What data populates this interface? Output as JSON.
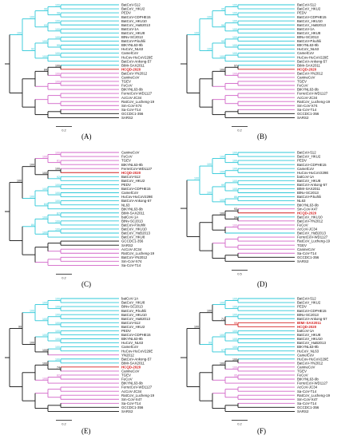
{
  "colors": {
    "cyan": "#2ec8d8",
    "magenta": "#d265c8",
    "red": "#d42020",
    "black": "#111111",
    "highlight_label": "#d42020"
  },
  "panels": [
    {
      "label": "(A)",
      "scale_value": "0.2",
      "taxa": [
        {
          "name": "BatCoV-512",
          "clade": "cyan"
        },
        {
          "name": "BatCoV_HKU2",
          "clade": "cyan"
        },
        {
          "name": "PEDV",
          "clade": "cyan"
        },
        {
          "name": "BatCoV-CDPHE15",
          "clade": "cyan"
        },
        {
          "name": "BatCoV_HKU10",
          "clade": "cyan"
        },
        {
          "name": "BatCoV_HuB2013",
          "clade": "cyan"
        },
        {
          "name": "BatCoV-1A",
          "clade": "cyan"
        },
        {
          "name": "BatCoV_HKU8",
          "clade": "cyan"
        },
        {
          "name": "BtNv-SC2013",
          "clade": "cyan"
        },
        {
          "name": "BatCoV-P.kuhlii",
          "clade": "cyan"
        },
        {
          "name": "BtKYNL63-9b",
          "clade": "cyan"
        },
        {
          "name": "HuCoV_NL63",
          "clade": "cyan"
        },
        {
          "name": "CamelCoV",
          "clade": "cyan"
        },
        {
          "name": "HuCov-HuCoV229E",
          "clade": "cyan"
        },
        {
          "name": "BatCoV-Ankong-57",
          "clade": "cyan"
        },
        {
          "name": "BtMr-SAX2011",
          "clade": "cyan"
        },
        {
          "name": "HCQD-2020",
          "clade": "red"
        },
        {
          "name": "BatCoV-YN2012",
          "clade": "magenta"
        },
        {
          "name": "CanineCoV",
          "clade": "magenta"
        },
        {
          "name": "TGEV",
          "clade": "magenta"
        },
        {
          "name": "FeCoV",
          "clade": "magenta"
        },
        {
          "name": "BtKYNL63-9b",
          "clade": "magenta"
        },
        {
          "name": "FerretCoV-WD1127",
          "clade": "magenta"
        },
        {
          "name": "AcCoV-JC34",
          "clade": "magenta"
        },
        {
          "name": "RatCoV_Lucheng-19",
          "clade": "magenta"
        },
        {
          "name": "Sm-CoV-X74",
          "clade": "magenta"
        },
        {
          "name": "Sa-CoV-T14",
          "clade": "magenta"
        },
        {
          "name": "GCCDC1-356",
          "clade": "black"
        },
        {
          "name": "SARS2",
          "clade": "black"
        }
      ],
      "bootstrap": [
        "100",
        "98",
        "96",
        "100",
        "100",
        "93",
        "100",
        "100",
        "99",
        "100",
        "100",
        "100",
        "92",
        "100",
        "100",
        "100",
        "84",
        "100"
      ]
    },
    {
      "label": "(B)",
      "scale_value": "0.2",
      "taxa": [
        {
          "name": "BatCoV-512",
          "clade": "cyan"
        },
        {
          "name": "BatCoV_HKU2",
          "clade": "cyan"
        },
        {
          "name": "PEDV",
          "clade": "cyan"
        },
        {
          "name": "BatCoV-CDPHE15",
          "clade": "cyan"
        },
        {
          "name": "BatCoV_HKU10",
          "clade": "cyan"
        },
        {
          "name": "BatCoV_HuB2013",
          "clade": "cyan"
        },
        {
          "name": "BatCoV-1A",
          "clade": "cyan"
        },
        {
          "name": "BatCoV_HKU8",
          "clade": "cyan"
        },
        {
          "name": "BtNv-SC2013",
          "clade": "cyan"
        },
        {
          "name": "BatCoV-P.kuhlii",
          "clade": "cyan"
        },
        {
          "name": "BtKYNL63-9b",
          "clade": "cyan"
        },
        {
          "name": "HuCoV_NL63",
          "clade": "cyan"
        },
        {
          "name": "CamelCoV",
          "clade": "cyan"
        },
        {
          "name": "HuCov-HuCoV229E",
          "clade": "cyan"
        },
        {
          "name": "BatCoV-Ankong-57",
          "clade": "cyan"
        },
        {
          "name": "BtMr-SAX2011",
          "clade": "cyan"
        },
        {
          "name": "HCQD-2020",
          "clade": "red"
        },
        {
          "name": "BatCoV-YN2012",
          "clade": "magenta"
        },
        {
          "name": "CanineCoV",
          "clade": "magenta"
        },
        {
          "name": "TGEV",
          "clade": "magenta"
        },
        {
          "name": "FeCoV",
          "clade": "magenta"
        },
        {
          "name": "BtKYNL63-9b",
          "clade": "magenta"
        },
        {
          "name": "FerretCoV-WD1127",
          "clade": "magenta"
        },
        {
          "name": "AcCoV-JC34",
          "clade": "magenta"
        },
        {
          "name": "RatCoV_Lucheng-19",
          "clade": "magenta"
        },
        {
          "name": "Sm-CoV-X74",
          "clade": "magenta"
        },
        {
          "name": "Sa-CoV-T14",
          "clade": "magenta"
        },
        {
          "name": "GCCDC1-356",
          "clade": "black"
        },
        {
          "name": "SARS2",
          "clade": "black"
        }
      ],
      "bootstrap": [
        "100",
        "100",
        "95",
        "100",
        "100",
        "96",
        "100",
        "100",
        "100",
        "99",
        "100",
        "100",
        "100",
        "100",
        "97",
        "100",
        "100"
      ]
    },
    {
      "label": "(C)",
      "scale_value": "0.2",
      "taxa": [
        {
          "name": "CanineCoV",
          "clade": "magenta"
        },
        {
          "name": "FeCoV",
          "clade": "magenta"
        },
        {
          "name": "TGEV",
          "clade": "magenta"
        },
        {
          "name": "BtKYNL63-9b",
          "clade": "magenta"
        },
        {
          "name": "FerretCoV-WD1127",
          "clade": "magenta"
        },
        {
          "name": "HCQD-2020",
          "clade": "red"
        },
        {
          "name": "BatCoV-512",
          "clade": "cyan"
        },
        {
          "name": "BatCoV_HKU2",
          "clade": "cyan"
        },
        {
          "name": "PEDV",
          "clade": "cyan"
        },
        {
          "name": "BatCoV-CDPHE15",
          "clade": "cyan"
        },
        {
          "name": "CamelCoV",
          "clade": "cyan"
        },
        {
          "name": "HuCov-HuCoV229E",
          "clade": "cyan"
        },
        {
          "name": "BatCoV-Ankong-57",
          "clade": "cyan"
        },
        {
          "name": "NL63",
          "clade": "cyan"
        },
        {
          "name": "BtKYNL63-9b",
          "clade": "cyan"
        },
        {
          "name": "BtMr-SAX2011",
          "clade": "cyan"
        },
        {
          "name": "batCoV-1A",
          "clade": "cyan"
        },
        {
          "name": "BtNv-SC2013",
          "clade": "cyan"
        },
        {
          "name": "BatCoV-P.kuhlii",
          "clade": "cyan"
        },
        {
          "name": "BatCoV_HKU10",
          "clade": "cyan"
        },
        {
          "name": "BatCoV_HuB2013",
          "clade": "cyan"
        },
        {
          "name": "BatCoV_HKU8",
          "clade": "cyan"
        },
        {
          "name": "GCCDC1-356",
          "clade": "black"
        },
        {
          "name": "SARS2",
          "clade": "black"
        },
        {
          "name": "AcCoV-JC34",
          "clade": "magenta"
        },
        {
          "name": "RatCoV_Lucheng-19",
          "clade": "magenta"
        },
        {
          "name": "BatCoV-YN2012",
          "clade": "magenta"
        },
        {
          "name": "Sm-CoV-X74",
          "clade": "magenta"
        },
        {
          "name": "Sa-CoV-T14",
          "clade": "magenta"
        }
      ],
      "bootstrap": [
        "100",
        "81",
        "100",
        "100",
        "92",
        "100",
        "100",
        "100",
        "100",
        "100",
        "100",
        "84",
        "100",
        "100",
        "87",
        "100",
        "100",
        "100",
        "100",
        "84"
      ]
    },
    {
      "label": "(D)",
      "scale_value": "0.5",
      "taxa": [
        {
          "name": "BatCoV-512",
          "clade": "cyan"
        },
        {
          "name": "BatCoV_HKU2",
          "clade": "cyan"
        },
        {
          "name": "PEDV",
          "clade": "cyan"
        },
        {
          "name": "BatCoV-CDPHE15",
          "clade": "cyan"
        },
        {
          "name": "CamelCoV",
          "clade": "cyan"
        },
        {
          "name": "HuCov-HuCoV229E",
          "clade": "cyan"
        },
        {
          "name": "batCoV-1A",
          "clade": "cyan"
        },
        {
          "name": "BatCoV_HKU8",
          "clade": "cyan"
        },
        {
          "name": "BatCoV-Ankong-57",
          "clade": "cyan"
        },
        {
          "name": "BtMr-SAX2011",
          "clade": "cyan"
        },
        {
          "name": "BtNv-SC2013",
          "clade": "cyan"
        },
        {
          "name": "BatCoV-P.kuhlii",
          "clade": "cyan"
        },
        {
          "name": "NL63",
          "clade": "cyan"
        },
        {
          "name": "BtKYNL63-9b",
          "clade": "cyan"
        },
        {
          "name": "Sm-CoV-X47",
          "clade": "magenta"
        },
        {
          "name": "HCQD-2020",
          "clade": "red"
        },
        {
          "name": "BatCoV_HKU10",
          "clade": "cyan"
        },
        {
          "name": "BatCoV-YN2012",
          "clade": "magenta"
        },
        {
          "name": "FeCoV",
          "clade": "magenta"
        },
        {
          "name": "AcCoV-JC34",
          "clade": "magenta"
        },
        {
          "name": "BatCoV_HuB2013",
          "clade": "cyan"
        },
        {
          "name": "FerretCoV-WD1127",
          "clade": "magenta"
        },
        {
          "name": "RatCoV_Lucheng-19",
          "clade": "magenta"
        },
        {
          "name": "TGEV",
          "clade": "magenta"
        },
        {
          "name": "CanineCoV",
          "clade": "magenta"
        },
        {
          "name": "Sa-CoV-T14",
          "clade": "magenta"
        },
        {
          "name": "GCCDC1-356",
          "clade": "black"
        },
        {
          "name": "SARS2",
          "clade": "black"
        }
      ],
      "bootstrap": [
        "100",
        "100",
        "100",
        "100",
        "100",
        "100",
        "100",
        "100",
        "99",
        "86",
        "100",
        "100",
        "100",
        "93",
        "94",
        "100",
        "100"
      ]
    },
    {
      "label": "(E)",
      "scale_value": "0.2",
      "taxa": [
        {
          "name": "batCoV-1A",
          "clade": "cyan"
        },
        {
          "name": "BatCoV_HKU8",
          "clade": "cyan"
        },
        {
          "name": "BtNv-SC2013",
          "clade": "cyan"
        },
        {
          "name": "BatCoV_P.kuhlii",
          "clade": "cyan"
        },
        {
          "name": "BatCoV_HKU10",
          "clade": "cyan"
        },
        {
          "name": "BatCoV_HuB2013",
          "clade": "cyan"
        },
        {
          "name": "BatCoV-512",
          "clade": "cyan"
        },
        {
          "name": "BatCoV_HKU2",
          "clade": "cyan"
        },
        {
          "name": "PEDV",
          "clade": "cyan"
        },
        {
          "name": "BatCoV-CDPHE15",
          "clade": "cyan"
        },
        {
          "name": "BtKYNL63-9b",
          "clade": "cyan"
        },
        {
          "name": "HuCoV_NL63",
          "clade": "cyan"
        },
        {
          "name": "CamelCoV",
          "clade": "cyan"
        },
        {
          "name": "HuCov-HuCoV229E",
          "clade": "cyan"
        },
        {
          "name": "YN2012",
          "clade": "magenta"
        },
        {
          "name": "BatCoV-Ankong-57",
          "clade": "cyan"
        },
        {
          "name": "BtMr-SAX2011",
          "clade": "cyan"
        },
        {
          "name": "HCQD-2020",
          "clade": "red"
        },
        {
          "name": "CanineCoV",
          "clade": "magenta"
        },
        {
          "name": "TGEV",
          "clade": "magenta"
        },
        {
          "name": "FeCoV",
          "clade": "magenta"
        },
        {
          "name": "BtKYNL63-9b",
          "clade": "magenta"
        },
        {
          "name": "FerretCoV-WD1127",
          "clade": "magenta"
        },
        {
          "name": "AcCoV-JC34",
          "clade": "magenta"
        },
        {
          "name": "RatCoV_Lucheng-19",
          "clade": "magenta"
        },
        {
          "name": "Sm-CoV-X47",
          "clade": "magenta"
        },
        {
          "name": "Sa-CoV-T14",
          "clade": "magenta"
        },
        {
          "name": "GCCDC1-356",
          "clade": "black"
        },
        {
          "name": "SARS2",
          "clade": "black"
        }
      ],
      "bootstrap": [
        "100",
        "100",
        "100",
        "100",
        "100",
        "100",
        "100",
        "100",
        "100",
        "100",
        "100",
        "100",
        "100",
        "99",
        "100",
        "74",
        "100",
        "82",
        "100"
      ]
    },
    {
      "label": "(F)",
      "scale_value": "0.2",
      "taxa": [
        {
          "name": "BatCoV-512",
          "clade": "cyan"
        },
        {
          "name": "BatCoV_HKU2",
          "clade": "cyan"
        },
        {
          "name": "PEDV",
          "clade": "cyan"
        },
        {
          "name": "BatCoV-CDPHE15",
          "clade": "cyan"
        },
        {
          "name": "BtNv-SC2013",
          "clade": "cyan"
        },
        {
          "name": "BatCoV-Ankong-57",
          "clade": "cyan"
        },
        {
          "name": "BtMr-SAX2011",
          "clade": "red"
        },
        {
          "name": "HCQD-2020",
          "clade": "red"
        },
        {
          "name": "batCoV-1A",
          "clade": "cyan"
        },
        {
          "name": "BatCoV_HKU8",
          "clade": "cyan"
        },
        {
          "name": "BatCoV_HKU10",
          "clade": "cyan"
        },
        {
          "name": "BatCoV_HuB2013",
          "clade": "cyan"
        },
        {
          "name": "BtKYNL63-9b",
          "clade": "cyan"
        },
        {
          "name": "HuCoV_NL63",
          "clade": "cyan"
        },
        {
          "name": "CamelCoV",
          "clade": "cyan"
        },
        {
          "name": "HuCov-HuCoV229E",
          "clade": "cyan"
        },
        {
          "name": "BatCoV-YN2012",
          "clade": "magenta"
        },
        {
          "name": "CanineCoV",
          "clade": "magenta"
        },
        {
          "name": "TGEV",
          "clade": "magenta"
        },
        {
          "name": "FeCoV",
          "clade": "magenta"
        },
        {
          "name": "BtKYNL63-9b",
          "clade": "magenta"
        },
        {
          "name": "FerretCoV-WD1127",
          "clade": "magenta"
        },
        {
          "name": "AcCoV-JC34",
          "clade": "magenta"
        },
        {
          "name": "Sa-CoV-T14",
          "clade": "magenta"
        },
        {
          "name": "RatCoV_Lucheng-19",
          "clade": "magenta"
        },
        {
          "name": "Sm-CoV-X47",
          "clade": "magenta"
        },
        {
          "name": "Sa-CoV-T14",
          "clade": "magenta"
        },
        {
          "name": "GCCDC1-356",
          "clade": "black"
        },
        {
          "name": "SARS2",
          "clade": "black"
        }
      ],
      "bootstrap": [
        "100",
        "100",
        "100",
        "100",
        "99",
        "71",
        "100",
        "100",
        "100",
        "100",
        "100",
        "97",
        "99",
        "100",
        "100",
        "100",
        "100",
        "95"
      ]
    }
  ]
}
